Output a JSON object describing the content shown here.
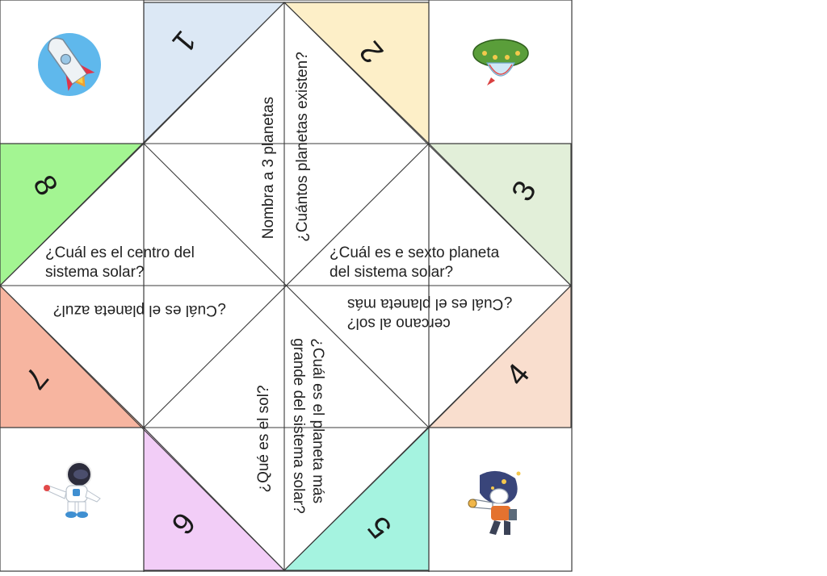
{
  "numbers": [
    "1",
    "2",
    "3",
    "4",
    "5",
    "6",
    "7",
    "8"
  ],
  "colors": {
    "flap1": "#dce8f5",
    "flap2": "#fdefc8",
    "flap3": "#e2efd9",
    "flap4": "#f9dece",
    "flap5": "#a5f3e0",
    "flap6": "#f2cdf7",
    "flap7": "#f7b5a0",
    "flap8": "#a3f592",
    "line": "#3b3b3b"
  },
  "questions": {
    "planet_names": "Nombra a 3 planetas",
    "planet_count": "¿Cuántos planetas existen?",
    "sixth_planet_l1": "¿Cuál es e sexto planeta",
    "sixth_planet_l2": "del sistema solar?",
    "closest_planet_l1": "¿Cuál es el planeta más",
    "closest_planet_l2": "cercano al sol?",
    "largest_planet_l1": "¿Cuál es el planeta más",
    "largest_planet_l2": "grande del sistema solar?",
    "what_is_sun": "¿Qué es el sol?",
    "blue_planet": "¿Cuál es el planeta azul?",
    "center_l1": "¿Cuál es el centro del",
    "center_l2": "sistema solar?"
  },
  "icons": {
    "top_left": "rocket-icon",
    "top_right": "ufo-icon",
    "bottom_left": "astronaut-icon",
    "bottom_right": "astronaut-telescope-icon"
  }
}
